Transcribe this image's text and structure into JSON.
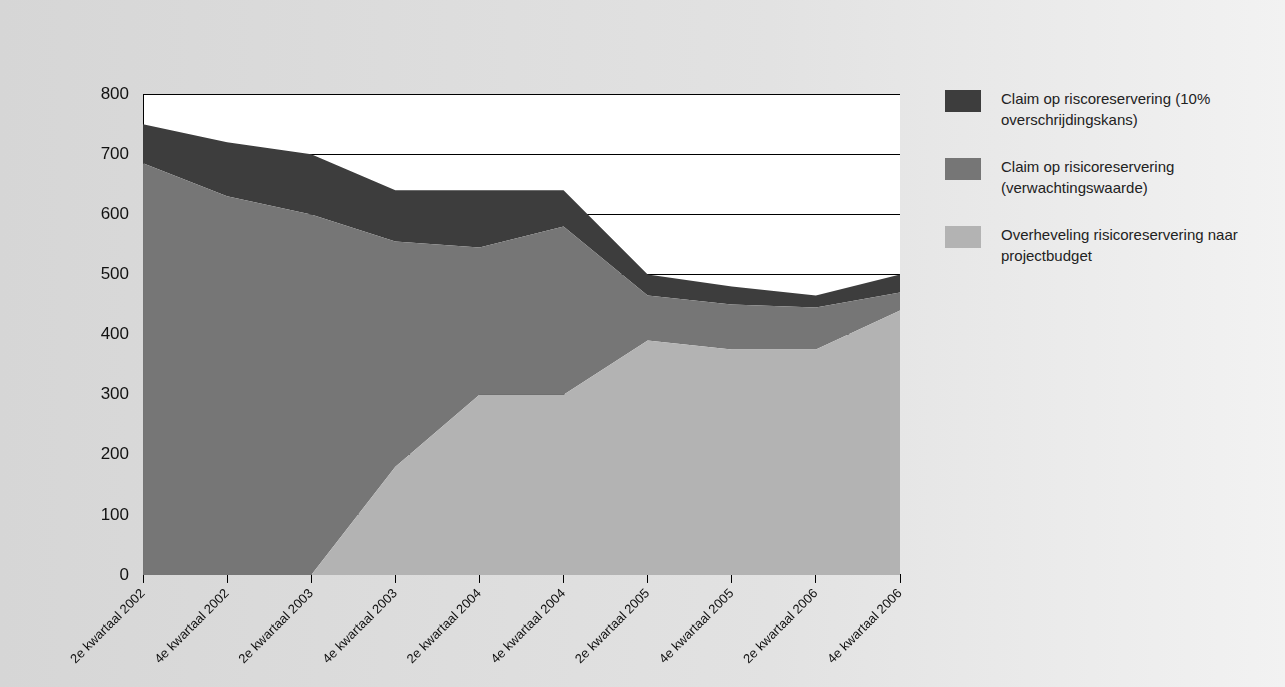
{
  "chart_data": {
    "type": "area",
    "stacked": true,
    "categories": [
      "2e kwartaal 2002",
      "4e kwartaal 2002",
      "2e kwartaal 2003",
      "4e kwartaal 2003",
      "2e kwartaal 2004",
      "4e kwartaal 2004",
      "2e kwartaal 2005",
      "4e kwartaal 2005",
      "2e kwartaal 2006",
      "4e kwartaal 2006"
    ],
    "series": [
      {
        "name": "Overheveling risicoreservering naar projectbudget",
        "color": "#b3b3b3",
        "values": [
          0,
          0,
          0,
          180,
          300,
          300,
          390,
          375,
          375,
          440
        ]
      },
      {
        "name": "Claim op risicoreservering (verwachtingswaarde)",
        "color": "#767676",
        "values": [
          685,
          630,
          600,
          375,
          245,
          280,
          75,
          75,
          70,
          30
        ]
      },
      {
        "name": "Claim op riscoreservering (10% overschrijdingskans)",
        "color": "#3d3d3d",
        "values": [
          65,
          90,
          100,
          85,
          95,
          60,
          35,
          30,
          20,
          30
        ]
      }
    ],
    "ylim": [
      0,
      800
    ],
    "yticks": [
      0,
      100,
      200,
      300,
      400,
      500,
      600,
      700,
      800
    ],
    "grid": true,
    "legend": "right"
  }
}
